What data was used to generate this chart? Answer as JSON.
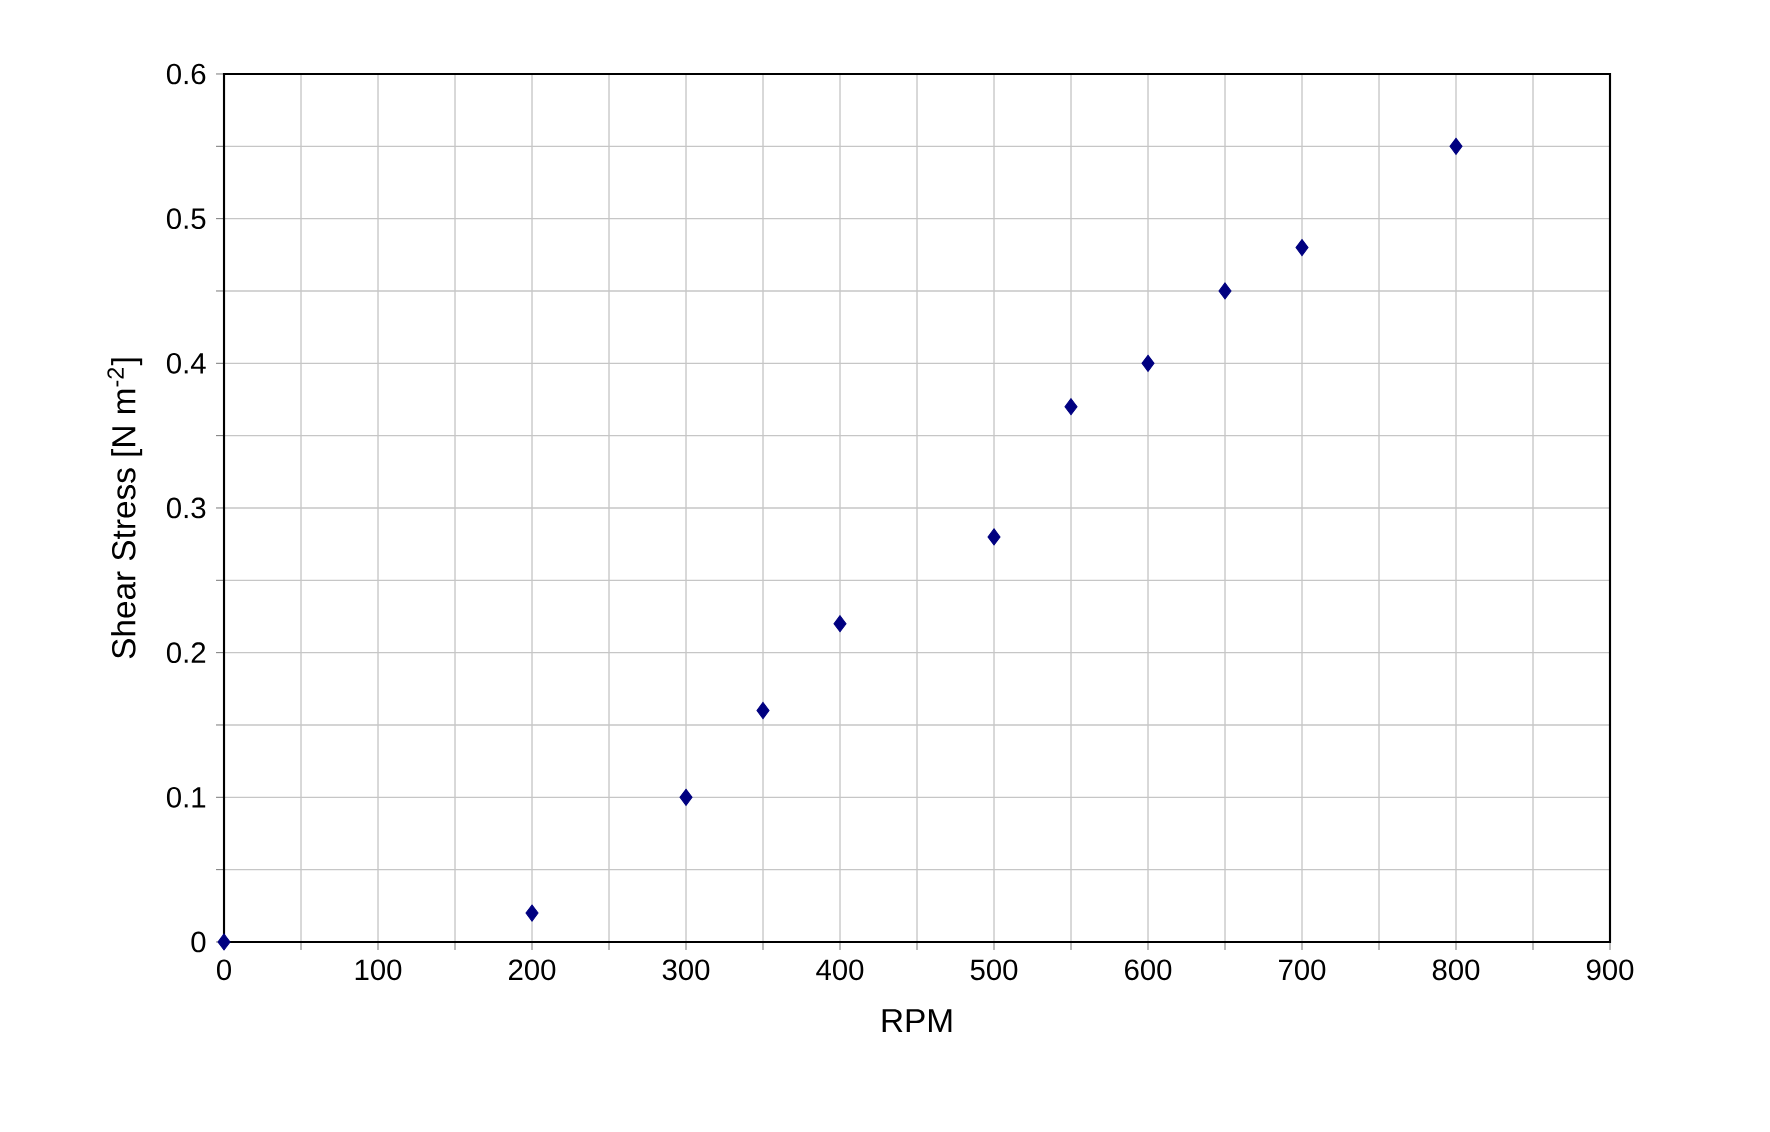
{
  "chart_data": {
    "type": "scatter",
    "xlabel": "RPM",
    "ylabel": "Shear Stress [N m$^{-2}$]",
    "x": [
      0,
      200,
      300,
      350,
      400,
      500,
      550,
      600,
      650,
      700,
      800
    ],
    "values": [
      0,
      0.02,
      0.1,
      0.16,
      0.22,
      0.28,
      0.37,
      0.4,
      0.45,
      0.48,
      0.55
    ],
    "color": "#000080",
    "marker": "diamond",
    "grid": true,
    "xlim": [
      0,
      900
    ],
    "xticks": [
      0,
      {
        "value": 50,
        "label": null
      },
      100,
      {
        "value": 150,
        "label": null
      },
      200,
      {
        "value": 250,
        "label": null
      },
      300,
      {
        "value": 350,
        "label": null
      },
      400,
      {
        "value": 450,
        "label": null
      },
      500,
      {
        "value": 550,
        "label": null
      },
      600,
      {
        "value": 650,
        "label": null
      },
      700,
      {
        "value": 750,
        "label": null
      },
      800,
      {
        "value": 850,
        "label": null
      },
      900
    ],
    "ylim": [
      0,
      0.6
    ],
    "yticks": [
      0,
      {
        "value": 0.05,
        "label": null
      },
      0.1,
      {
        "value": 0.15,
        "label": null
      },
      0.2,
      {
        "value": 0.25,
        "label": null
      },
      0.3,
      {
        "value": 0.35,
        "label": null
      },
      0.4,
      {
        "value": 0.45,
        "label": null
      },
      0.5,
      {
        "value": 0.55,
        "label": null
      },
      0.6
    ]
  }
}
